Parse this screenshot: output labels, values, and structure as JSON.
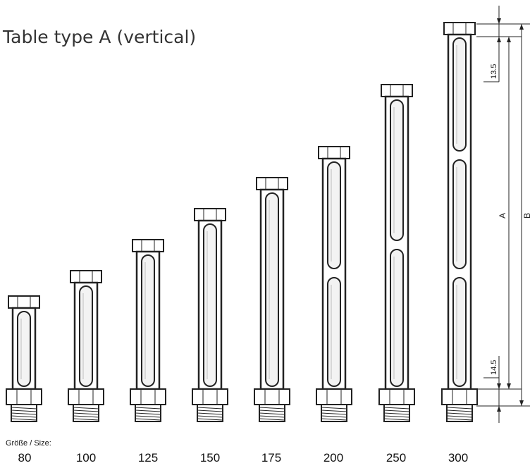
{
  "title": "Table type A (vertical)",
  "size_caption": "Größe / Size:",
  "sizes": [
    "80",
    "100",
    "125",
    "150",
    "175",
    "200",
    "250",
    "300"
  ],
  "dimensions": {
    "top_offset": "13.5",
    "bottom_offset": "14.5",
    "inner_length": "A",
    "total_length": "B"
  },
  "colors": {
    "line": "#222222",
    "text": "#333333",
    "body_fill": "#ffffff",
    "window_fill": "#f3f3f3"
  }
}
